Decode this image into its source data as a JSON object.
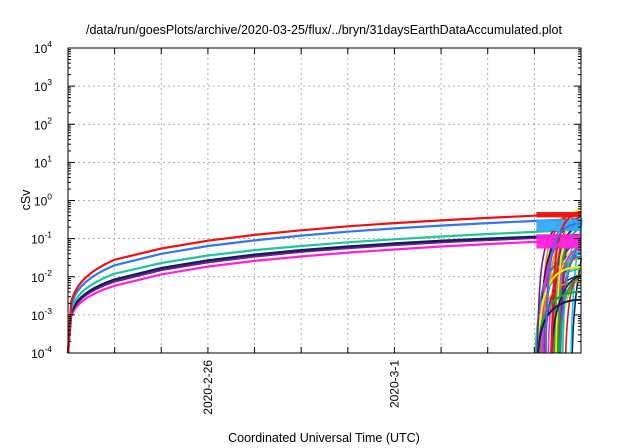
{
  "chart_data": {
    "type": "line",
    "title": "/data/run/goesPlots/archive/2020-03-25/flux/../bryn/31daysEarthDataAccumulated.plot",
    "xlabel": "Coordinated Universal Time (UTC)",
    "ylabel": "cSv",
    "y_scale": "log",
    "ylim": [
      0.0001,
      10000
    ],
    "xlim": [
      "2020-02-23",
      "2020-03-05"
    ],
    "grid": true,
    "x_tick_labels": [
      {
        "label": "2020-2-26",
        "x": "2020-02-26"
      },
      {
        "label": "2020-3-1",
        "x": "2020-03-01"
      }
    ],
    "y_tick_labels": [
      {
        "base": "10",
        "exp": "4",
        "value": 10000
      },
      {
        "base": "10",
        "exp": "3",
        "value": 1000
      },
      {
        "base": "10",
        "exp": "2",
        "value": 100
      },
      {
        "base": "10",
        "exp": "1",
        "value": 10
      },
      {
        "base": "10",
        "exp": "0",
        "value": 1
      },
      {
        "base": "10",
        "exp": "-1",
        "value": 0.1
      },
      {
        "base": "10",
        "exp": "-2",
        "value": 0.01
      },
      {
        "base": "10",
        "exp": "-3",
        "value": 0.001
      },
      {
        "base": "10",
        "exp": "-4",
        "value": 0.0001
      }
    ],
    "series": [
      {
        "color": "#ee1111",
        "x": [
          "2020-02-23",
          "2020-02-24",
          "2020-02-25",
          "2020-02-26",
          "2020-02-27",
          "2020-02-28",
          "2020-02-29",
          "2020-03-01",
          "2020-03-02",
          "2020-03-03",
          "2020-03-04",
          "2020-03-05"
        ],
        "values": [
          0.0001,
          0.028,
          0.055,
          0.088,
          0.125,
          0.165,
          0.21,
          0.255,
          0.3,
          0.35,
          0.4,
          0.45
        ]
      },
      {
        "color": "#3377ee",
        "x": [
          "2020-02-23",
          "2020-02-24",
          "2020-02-25",
          "2020-02-26",
          "2020-02-27",
          "2020-02-28",
          "2020-02-29",
          "2020-03-01",
          "2020-03-02",
          "2020-03-03",
          "2020-03-04",
          "2020-03-05"
        ],
        "values": [
          0.0001,
          0.02,
          0.04,
          0.064,
          0.09,
          0.12,
          0.152,
          0.185,
          0.22,
          0.255,
          0.29,
          0.33
        ]
      },
      {
        "color": "#22c49a",
        "x": [
          "2020-02-23",
          "2020-02-24",
          "2020-02-25",
          "2020-02-26",
          "2020-02-27",
          "2020-02-28",
          "2020-02-29",
          "2020-03-01",
          "2020-03-02",
          "2020-03-03",
          "2020-03-04",
          "2020-03-05"
        ],
        "values": [
          0.0001,
          0.012,
          0.023,
          0.036,
          0.05,
          0.064,
          0.08,
          0.096,
          0.114,
          0.132,
          0.15,
          0.17
        ]
      },
      {
        "color": "#0b1f5c",
        "x": [
          "2020-02-23",
          "2020-02-24",
          "2020-02-25",
          "2020-02-26",
          "2020-02-27",
          "2020-02-28",
          "2020-02-29",
          "2020-03-01",
          "2020-03-02",
          "2020-03-03",
          "2020-03-04",
          "2020-03-05"
        ],
        "values": [
          0.0001,
          0.0085,
          0.017,
          0.027,
          0.038,
          0.05,
          0.062,
          0.075,
          0.088,
          0.1,
          0.112,
          0.125
        ]
      },
      {
        "color": "#7a1a8a",
        "x": [
          "2020-02-23",
          "2020-02-24",
          "2020-02-25",
          "2020-02-26",
          "2020-02-27",
          "2020-02-28",
          "2020-02-29",
          "2020-03-01",
          "2020-03-02",
          "2020-03-03",
          "2020-03-04",
          "2020-03-05"
        ],
        "values": [
          0.0001,
          0.0075,
          0.015,
          0.024,
          0.034,
          0.045,
          0.056,
          0.068,
          0.08,
          0.092,
          0.104,
          0.116
        ]
      },
      {
        "color": "#ff22dd",
        "x": [
          "2020-02-23",
          "2020-02-24",
          "2020-02-25",
          "2020-02-26",
          "2020-02-27",
          "2020-02-28",
          "2020-02-29",
          "2020-03-01",
          "2020-03-02",
          "2020-03-03",
          "2020-03-04",
          "2020-03-05"
        ],
        "values": [
          0.0001,
          0.0058,
          0.0115,
          0.0185,
          0.026,
          0.034,
          0.043,
          0.052,
          0.062,
          0.072,
          0.082,
          0.093
        ]
      }
    ],
    "late_restart_series": [
      {
        "color": "#ee1111",
        "x": [
          "2020-03-04",
          "2020-03-05"
        ],
        "values": [
          0.0001,
          0.45
        ]
      },
      {
        "color": "#ff22dd",
        "x": [
          "2020-03-04",
          "2020-03-05"
        ],
        "values": [
          0.0001,
          0.12
        ]
      },
      {
        "color": "#ffee00",
        "x": [
          "2020-03-04",
          "2020-03-05"
        ],
        "values": [
          0.0001,
          0.018
        ]
      },
      {
        "color": "#11aa33",
        "x": [
          "2020-03-04",
          "2020-03-05"
        ],
        "values": [
          0.0001,
          0.004
        ]
      },
      {
        "color": "#0b1f5c",
        "x": [
          "2020-03-04",
          "2020-03-05"
        ],
        "values": [
          0.0001,
          0.0025
        ]
      },
      {
        "color": "#3377ee",
        "x": [
          "2020-03-04",
          "2020-03-05"
        ],
        "values": [
          0.0001,
          0.25
        ]
      }
    ]
  }
}
